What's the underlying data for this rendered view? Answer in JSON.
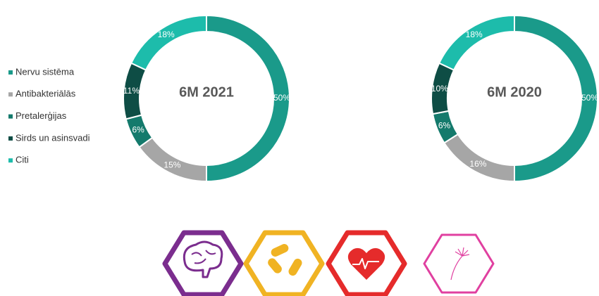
{
  "chart_data": [
    {
      "type": "donut",
      "title": "6M 2021",
      "categories": [
        "Nervu sistēma",
        "Antibakteriālās",
        "Pretalerģijas",
        "Sirds un asinsvadi",
        "Citi"
      ],
      "colors": [
        "#1a9a8a",
        "#a6a6a6",
        "#147a6c",
        "#0e4d45",
        "#1dbcab"
      ],
      "values": [
        50,
        15,
        6,
        11,
        18
      ],
      "value_labels": [
        "50%",
        "15%",
        "6%",
        "11%",
        "18%"
      ]
    },
    {
      "type": "donut",
      "title": "6M 2020",
      "values": [
        50,
        16,
        6,
        10,
        18
      ],
      "value_labels": [
        "50%",
        "16%",
        "6%",
        "10%",
        "18%"
      ]
    }
  ]
}
